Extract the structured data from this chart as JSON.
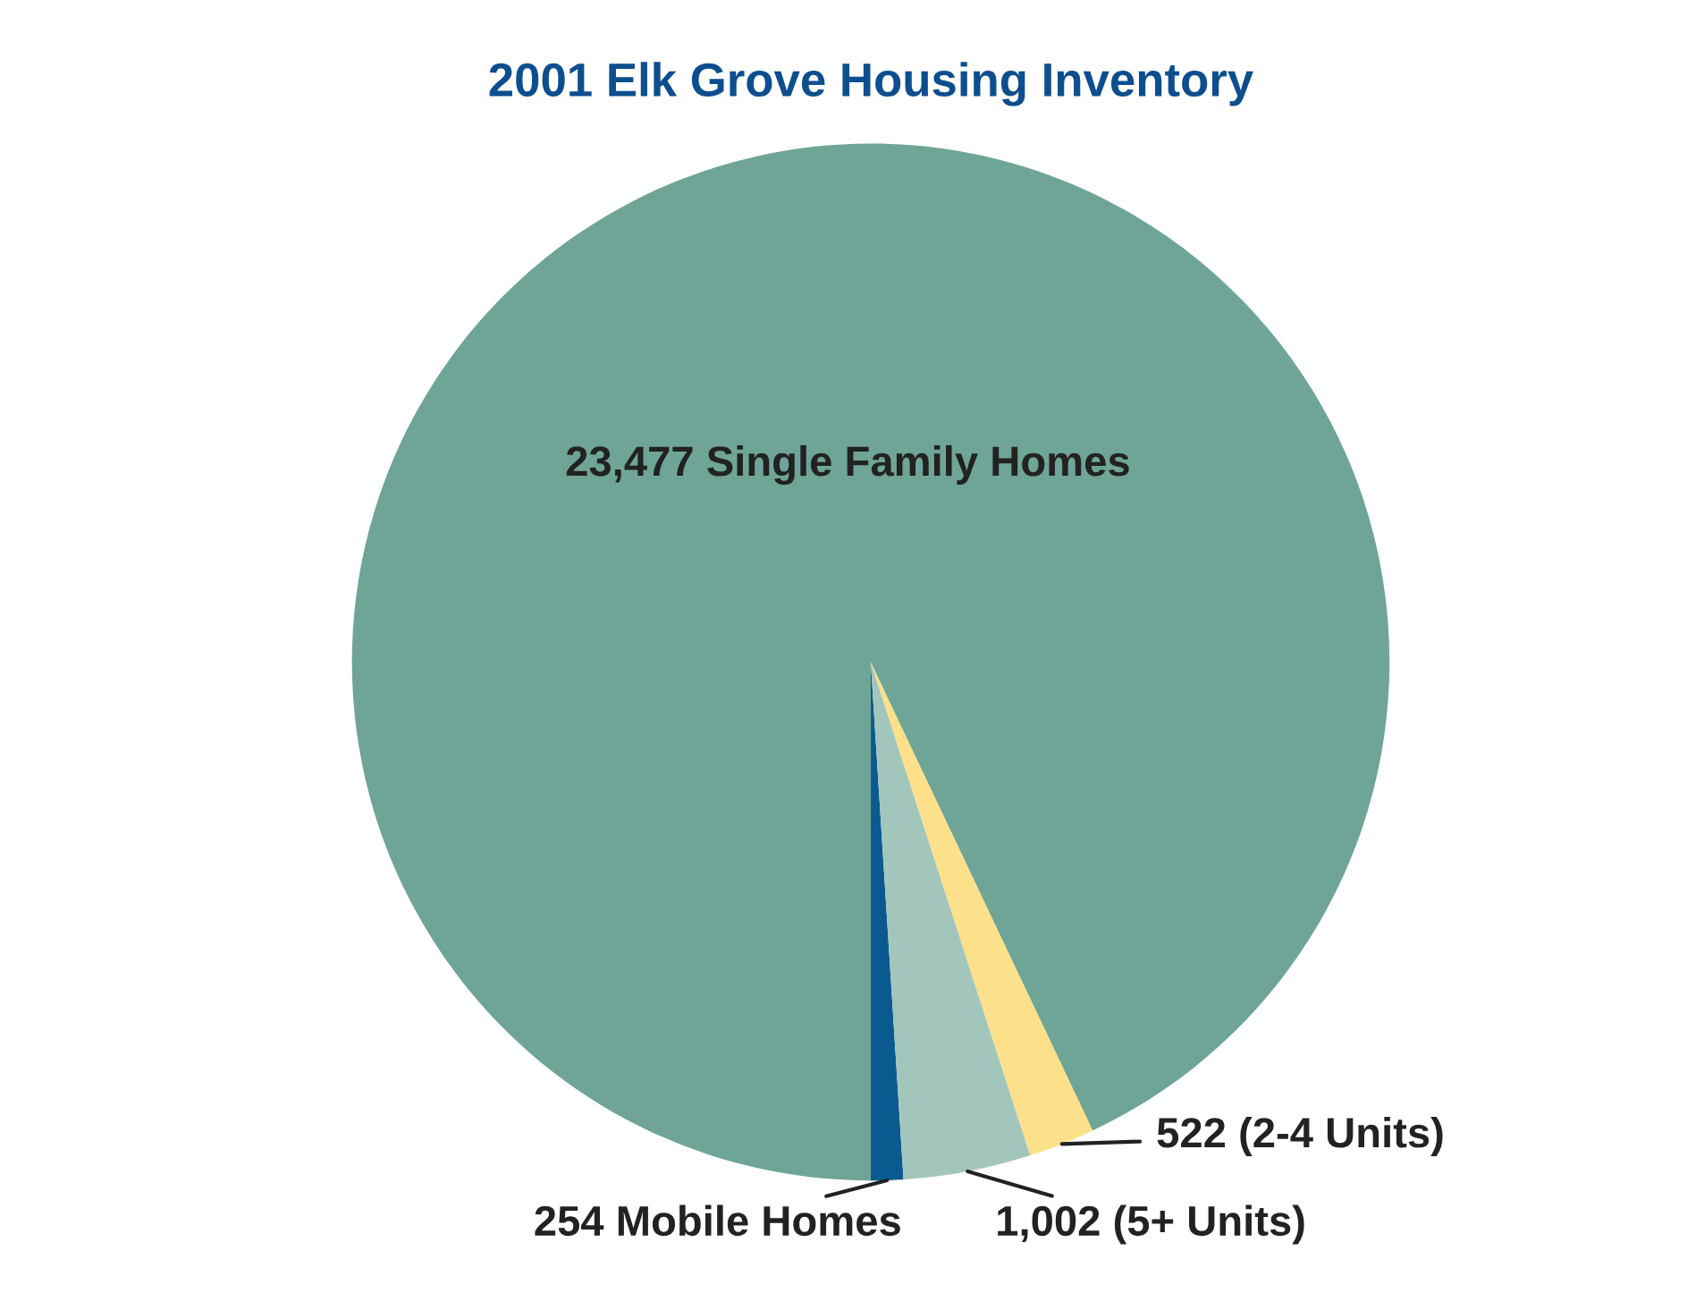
{
  "chart_data": {
    "type": "pie",
    "title": "2001 Elk Grove Housing Inventory",
    "categories": [
      "Mobile Homes",
      "(5+ Units)",
      "(2-4 Units)",
      "Single Family Homes"
    ],
    "values": [
      254,
      1002,
      522,
      23477
    ],
    "value_labels": [
      "254",
      "1,002",
      "522",
      "23,477"
    ],
    "colors": [
      "#0b5a8f",
      "#a2c6bc",
      "#fde08a",
      "#6fa596"
    ],
    "legend": false
  }
}
